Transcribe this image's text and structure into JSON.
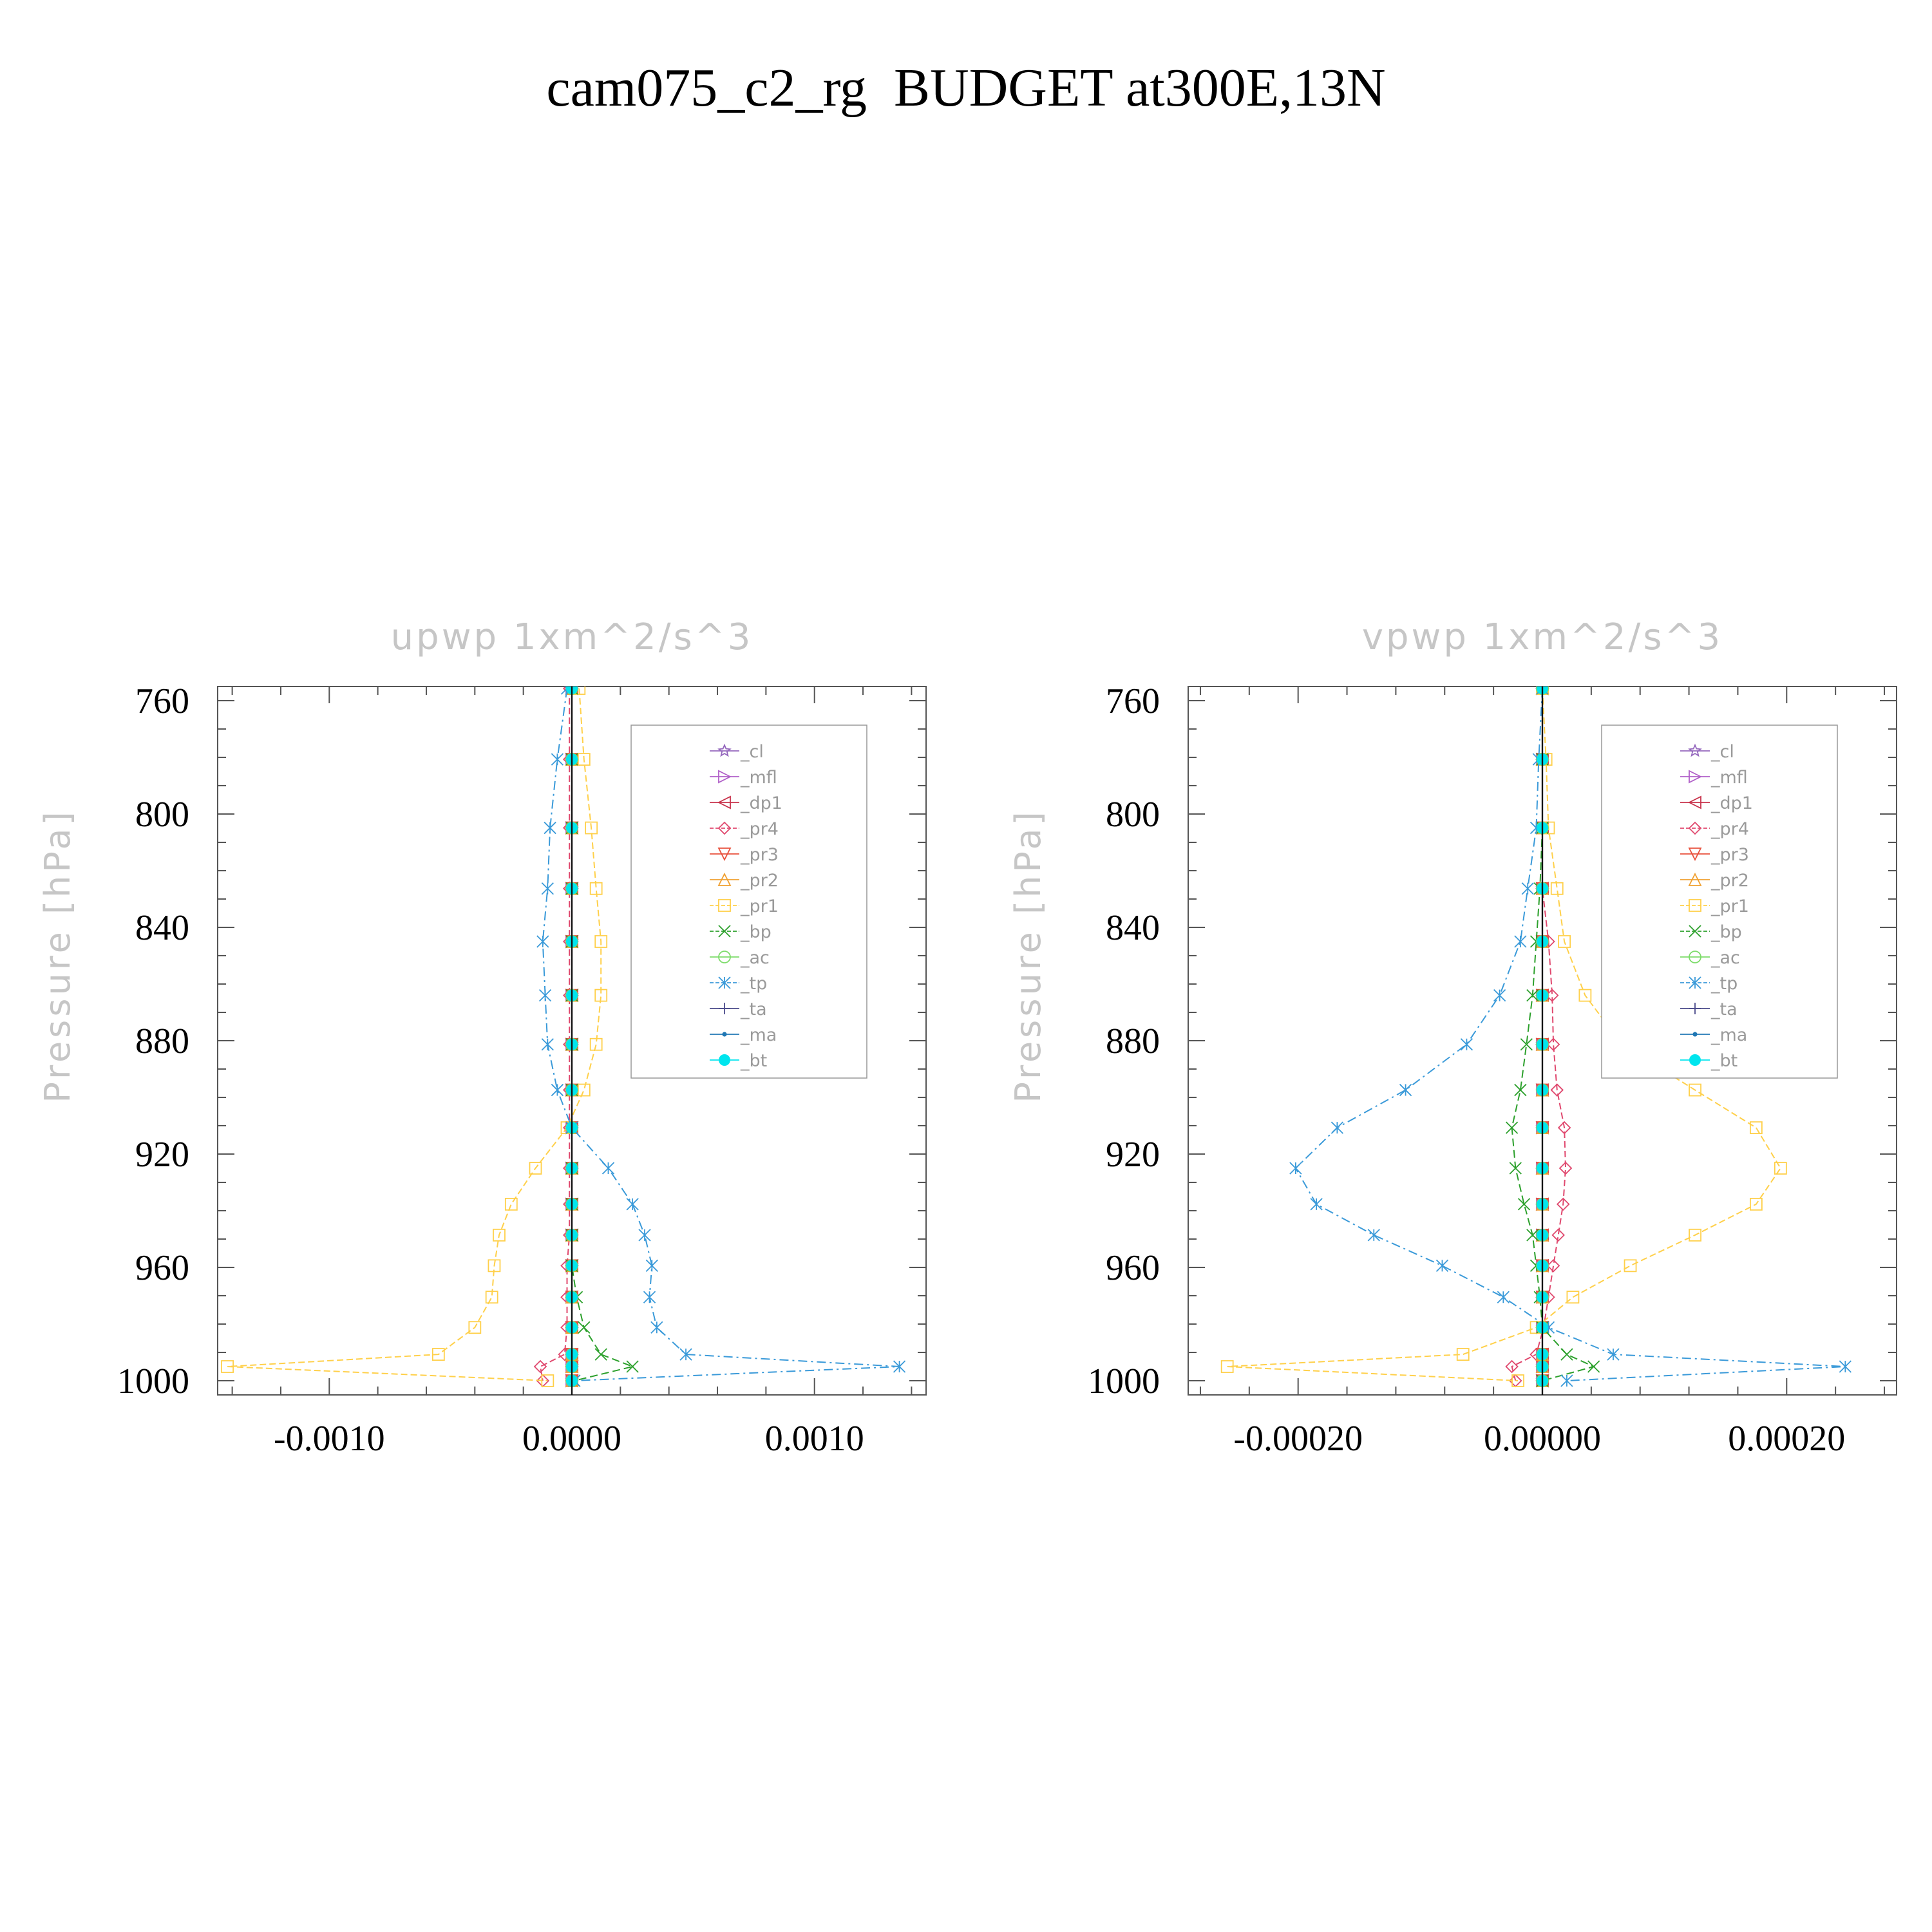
{
  "title": "cam075_c2_rg  BUDGET at300E,13N",
  "legend": [
    "_cl",
    "_mfl",
    "_dp1",
    "_pr4",
    "_pr3",
    "_pr2",
    "_pr1",
    "_bp",
    "_ac",
    "_tp",
    "_ta",
    "_ma",
    "_bt"
  ],
  "chart_data": [
    {
      "type": "line",
      "title": "upwp",
      "units": "1xm^2/s^3",
      "ylabel": "Pressure [hPa]",
      "ylim": [
        1005,
        755
      ],
      "xlim": [
        -0.00146,
        0.00146
      ],
      "yticks": [
        760,
        800,
        840,
        880,
        920,
        960,
        1000
      ],
      "xticks": [
        -0.001,
        0.0,
        0.001
      ],
      "xtick_labels": [
        "-0.0010",
        "0.0000",
        "0.0010"
      ],
      "grid": false,
      "legend_position": "upper-right",
      "y": [
        755.7,
        780.7,
        804.9,
        826.3,
        845.0,
        864.0,
        881.3,
        897.4,
        910.7,
        925.0,
        937.7,
        948.6,
        959.4,
        970.5,
        981.2,
        990.7,
        995.0,
        1000.0
      ],
      "series": [
        {
          "name": "_cl",
          "color": "#9467bd",
          "marker": "star",
          "values": [
            0,
            0,
            0,
            0,
            0,
            0,
            0,
            0,
            0,
            0,
            0,
            0,
            0,
            0,
            0,
            0,
            0,
            0
          ]
        },
        {
          "name": "_mfl",
          "color": "#b05fc8",
          "marker": "triangle-right",
          "values": [
            0,
            0,
            0,
            0,
            0,
            0,
            0,
            0,
            0,
            0,
            0,
            0,
            0,
            0,
            0,
            0,
            0,
            0
          ]
        },
        {
          "name": "_dp1",
          "color": "#c8324b",
          "marker": "triangle-left",
          "values": [
            0,
            0,
            0,
            0,
            0,
            0,
            0,
            0,
            0,
            0,
            0,
            0,
            0,
            0,
            0,
            0,
            0,
            0
          ]
        },
        {
          "name": "_pr4",
          "color": "#e0486e",
          "marker": "diamond",
          "values": [
            -1e-05,
            -1e-05,
            -1e-05,
            -1e-05,
            -1e-05,
            -1e-05,
            -1e-05,
            -1e-05,
            -1e-05,
            -1e-05,
            -1e-05,
            -1e-05,
            -2e-05,
            -2e-05,
            -2e-05,
            -3e-05,
            -0.00013,
            -0.00012
          ]
        },
        {
          "name": "_pr3",
          "color": "#e8503c",
          "marker": "triangle-down",
          "values": [
            0,
            0,
            0,
            0,
            0,
            0,
            0,
            0,
            0,
            0,
            0,
            0,
            0,
            0,
            0,
            0,
            0,
            0
          ]
        },
        {
          "name": "_pr2",
          "color": "#f0a030",
          "marker": "triangle-up",
          "values": [
            0,
            0,
            0,
            0,
            0,
            0,
            0,
            0,
            0,
            0,
            0,
            0,
            0,
            0,
            0,
            0,
            0,
            0
          ]
        },
        {
          "name": "_pr1",
          "color": "#ffd04a",
          "marker": "square",
          "values": [
            3e-05,
            5e-05,
            8e-05,
            0.0001,
            0.00012,
            0.00012,
            0.0001,
            5e-05,
            -2e-05,
            -0.00015,
            -0.00025,
            -0.0003,
            -0.00032,
            -0.00033,
            -0.0004,
            -0.00055,
            -0.00142,
            -0.0001
          ]
        },
        {
          "name": "_bp",
          "color": "#2ca02c",
          "marker": "x",
          "values": [
            0,
            0,
            0,
            0,
            0,
            0,
            0,
            0,
            0,
            0,
            0,
            0,
            0,
            2e-05,
            5e-05,
            0.00012,
            0.00025,
            1e-05
          ]
        },
        {
          "name": "_ac",
          "color": "#7ddc6a",
          "marker": "circle",
          "values": [
            0,
            0,
            0,
            0,
            0,
            0,
            0,
            0,
            0,
            0,
            0,
            0,
            0,
            0,
            0,
            0,
            0,
            0
          ]
        },
        {
          "name": "_tp",
          "color": "#3a9ad9",
          "marker": "asterisk",
          "values": [
            -2e-05,
            -6e-05,
            -9e-05,
            -0.0001,
            -0.00012,
            -0.00011,
            -0.0001,
            -6e-05,
            0.0,
            0.00015,
            0.00025,
            0.0003,
            0.00033,
            0.00032,
            0.00035,
            0.00047,
            0.00135,
            1e-05
          ]
        },
        {
          "name": "_ta",
          "color": "#4a4a8a",
          "marker": "plus",
          "values": [
            0,
            0,
            0,
            0,
            0,
            0,
            0,
            0,
            0,
            0,
            0,
            0,
            0,
            0,
            0,
            0,
            0,
            0
          ]
        },
        {
          "name": "_ma",
          "color": "#1f77b4",
          "marker": "dot",
          "values": [
            0,
            0,
            0,
            0,
            0,
            0,
            0,
            0,
            0,
            0,
            0,
            0,
            0,
            0,
            0,
            0,
            0,
            0
          ]
        },
        {
          "name": "_bt",
          "color": "#00e5ee",
          "marker": "filled-circle",
          "values": [
            0,
            0,
            0,
            0,
            0,
            0,
            0,
            0,
            0,
            0,
            0,
            0,
            0,
            0,
            0,
            0,
            0,
            0
          ]
        }
      ]
    },
    {
      "type": "line",
      "title": "vpwp",
      "units": "1xm^2/s^3",
      "ylabel": "Pressure [hPa]",
      "ylim": [
        1005,
        755
      ],
      "xlim": [
        -0.00029,
        0.00029
      ],
      "yticks": [
        760,
        800,
        840,
        880,
        920,
        960,
        1000
      ],
      "xticks": [
        -0.0002,
        0.0,
        0.0002
      ],
      "xtick_labels": [
        "-0.00020",
        "0.00000",
        "0.00020"
      ],
      "grid": false,
      "legend_position": "upper-right",
      "y": [
        755.7,
        780.7,
        804.9,
        826.3,
        845.0,
        864.0,
        881.3,
        897.4,
        910.7,
        925.0,
        937.7,
        948.6,
        959.4,
        970.5,
        981.2,
        990.7,
        995.0,
        1000.0
      ],
      "series": [
        {
          "name": "_cl",
          "color": "#9467bd",
          "marker": "star",
          "values": [
            0,
            0,
            0,
            0,
            0,
            0,
            0,
            0,
            0,
            0,
            0,
            0,
            0,
            0,
            0,
            0,
            0,
            0
          ]
        },
        {
          "name": "_mfl",
          "color": "#b05fc8",
          "marker": "triangle-right",
          "values": [
            0,
            0,
            0,
            0,
            0,
            0,
            0,
            0,
            0,
            0,
            0,
            0,
            0,
            0,
            0,
            0,
            0,
            0
          ]
        },
        {
          "name": "_dp1",
          "color": "#c8324b",
          "marker": "triangle-left",
          "values": [
            0,
            0,
            0,
            0,
            0,
            0,
            0,
            0,
            0,
            0,
            0,
            0,
            0,
            0,
            0,
            0,
            0,
            0
          ]
        },
        {
          "name": "_pr4",
          "color": "#e0486e",
          "marker": "diamond",
          "values": [
            0,
            0,
            0,
            0,
            5e-06,
            8e-06,
            9e-06,
            1.2e-05,
            1.8e-05,
            1.9e-05,
            1.7e-05,
            1.3e-05,
            9e-06,
            5e-06,
            1e-06,
            -5e-06,
            -2.5e-05,
            -2.2e-05
          ]
        },
        {
          "name": "_pr3",
          "color": "#e8503c",
          "marker": "triangle-down",
          "values": [
            0,
            0,
            0,
            0,
            0,
            0,
            0,
            0,
            0,
            0,
            0,
            0,
            0,
            0,
            0,
            0,
            0,
            0
          ]
        },
        {
          "name": "_pr2",
          "color": "#f0a030",
          "marker": "triangle-up",
          "values": [
            0,
            0,
            0,
            0,
            0,
            0,
            0,
            0,
            0,
            0,
            0,
            0,
            0,
            0,
            0,
            0,
            0,
            0
          ]
        },
        {
          "name": "_pr1",
          "color": "#ffd04a",
          "marker": "square",
          "values": [
            0.0,
            3e-06,
            5e-06,
            1.2e-05,
            1.8e-05,
            3.5e-05,
            6.5e-05,
            0.000125,
            0.000175,
            0.000195,
            0.000175,
            0.000125,
            7.2e-05,
            2.5e-05,
            -5e-06,
            -6.5e-05,
            -0.000258,
            -2e-05
          ]
        },
        {
          "name": "_bp",
          "color": "#2ca02c",
          "marker": "x",
          "values": [
            0,
            0,
            0,
            -2e-06,
            -5e-06,
            -8e-06,
            -1.3e-05,
            -1.8e-05,
            -2.5e-05,
            -2.2e-05,
            -1.5e-05,
            -8e-06,
            -5e-06,
            -2e-06,
            0.0,
            2e-05,
            4.2e-05,
            0.0
          ]
        },
        {
          "name": "_ac",
          "color": "#7ddc6a",
          "marker": "circle",
          "values": [
            0,
            0,
            0,
            0,
            0,
            0,
            0,
            0,
            0,
            0,
            0,
            0,
            0,
            0,
            0,
            0,
            0,
            0
          ]
        },
        {
          "name": "_tp",
          "color": "#3a9ad9",
          "marker": "asterisk",
          "values": [
            0,
            -3e-06,
            -5e-06,
            -1.2e-05,
            -1.8e-05,
            -3.5e-05,
            -6.2e-05,
            -0.000112,
            -0.000168,
            -0.000202,
            -0.000185,
            -0.000138,
            -8.2e-05,
            -3.2e-05,
            5e-06,
            5.8e-05,
            0.000248,
            2e-05
          ]
        },
        {
          "name": "_ta",
          "color": "#4a4a8a",
          "marker": "plus",
          "values": [
            0,
            0,
            0,
            0,
            0,
            0,
            0,
            0,
            0,
            0,
            0,
            0,
            0,
            0,
            0,
            0,
            0,
            0
          ]
        },
        {
          "name": "_ma",
          "color": "#1f77b4",
          "marker": "dot",
          "values": [
            0,
            0,
            0,
            0,
            0,
            0,
            0,
            0,
            0,
            0,
            0,
            0,
            0,
            0,
            0,
            0,
            0,
            0
          ]
        },
        {
          "name": "_bt",
          "color": "#00e5ee",
          "marker": "filled-circle",
          "values": [
            0,
            0,
            0,
            0,
            0,
            0,
            0,
            0,
            0,
            0,
            0,
            0,
            0,
            0,
            0,
            0,
            0,
            0
          ]
        }
      ]
    }
  ]
}
